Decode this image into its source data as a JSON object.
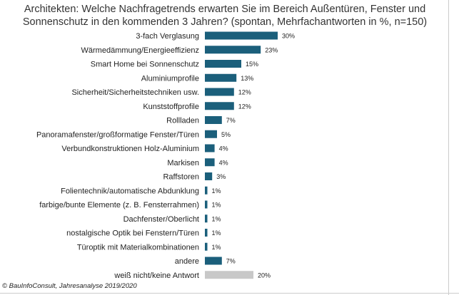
{
  "chart_data": {
    "type": "bar",
    "orientation": "horizontal",
    "title": "Architekten: Welche Nachfragetrends erwarten Sie im Bereich Außentüren, Fenster und Sonnenschutz in den kommenden 3 Jahren? (spontan, Mehrfachantworten in %, n=150)",
    "xlabel": "",
    "ylabel": "",
    "xlim": [
      0,
      30
    ],
    "grid": false,
    "categories": [
      "3-fach Verglasung",
      "Wärmedämmung/Energieeffizienz",
      "Smart Home bei Sonnenschutz",
      "Aluminiumprofile",
      "Sicherheit/Sicherheitstechniken usw.",
      "Kunststoffprofile",
      "Rollladen",
      "Panoramafenster/großformatige Fenster/Türen",
      "Verbundkonstruktionen Holz-Aluminium",
      "Markisen",
      "Raffstoren",
      "Folientechnik/automatische Abdunklung",
      "farbige/bunte Elemente (z. B. Fensterrahmen)",
      "Dachfenster/Oberlicht",
      "nostalgische Optik bei Fenstern/Türen",
      "Türoptik mit Materialkombinationen",
      "andere",
      "weiß nicht/keine Antwort"
    ],
    "values": [
      30,
      23,
      15,
      13,
      12,
      12,
      7,
      5,
      4,
      4,
      3,
      1,
      1,
      1,
      1,
      1,
      7,
      20
    ],
    "value_suffix": "%",
    "colors": {
      "primary": "#1b5f7b",
      "neutral": "#c8c8c8"
    },
    "neutral_categories": [
      "weiß nicht/keine Antwort"
    ]
  },
  "source": "© BauInfoConsult, Jahresanalyse 2019/2020"
}
